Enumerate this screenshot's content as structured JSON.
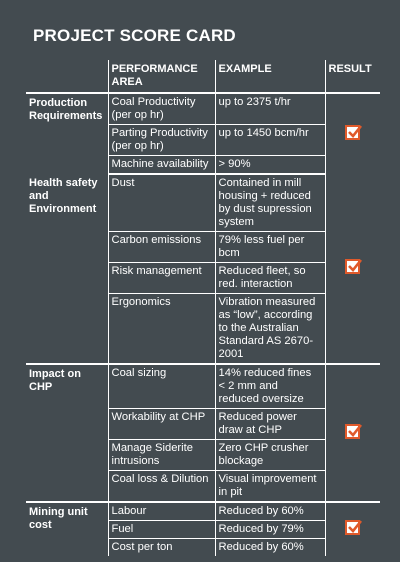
{
  "title": "PROJECT SCORE CARD",
  "headers": {
    "performance": "PERFORMANCE AREA",
    "example": "EXAMPLE",
    "result": "RESULT"
  },
  "sections": [
    {
      "category": "Production Requirements",
      "rows": [
        {
          "area": "Coal Productivity (per op hr)",
          "example": "up to 2375 t/hr"
        },
        {
          "area": "Parting Productivity (per op hr)",
          "example": "up to 1450 bcm/hr"
        },
        {
          "area": "Machine availability",
          "example": "> 90%"
        }
      ],
      "result": "check-icon"
    },
    {
      "category": "Health safety and Environment",
      "rows": [
        {
          "area": "Dust",
          "example": "Contained in mill housing + reduced by dust supression system"
        },
        {
          "area": "Carbon emissions",
          "example": "79% less fuel per bcm"
        },
        {
          "area": "Risk management",
          "example": "Reduced fleet, so red. interaction"
        },
        {
          "area": "Ergonomics",
          "example": "Vibration measured as “low”, according to the Australian Standard AS 2670-2001"
        }
      ],
      "result": "check-icon"
    },
    {
      "category": "Impact on CHP",
      "rows": [
        {
          "area": "Coal sizing",
          "example": "14% reduced fines < 2 mm and reduced oversize"
        },
        {
          "area": "Workability at CHP",
          "example": "Reduced power draw at CHP"
        },
        {
          "area": "Manage Siderite intrusions",
          "example": "Zero CHP crusher blockage"
        },
        {
          "area": "Coal loss & Dilution",
          "example": "Visual improvement in pit"
        }
      ],
      "result": "check-icon"
    },
    {
      "category": "Mining unit cost",
      "rows": [
        {
          "area": "Labour",
          "example": "Reduced by 60%"
        },
        {
          "area": "Fuel",
          "example": "Reduced by 79%"
        },
        {
          "area": "Cost per ton",
          "example": "Reduced by 60%"
        }
      ],
      "result": "check-icon"
    }
  ],
  "colors": {
    "background": "#434b50",
    "text": "#ffffff",
    "check_border": "#e05a2b"
  }
}
